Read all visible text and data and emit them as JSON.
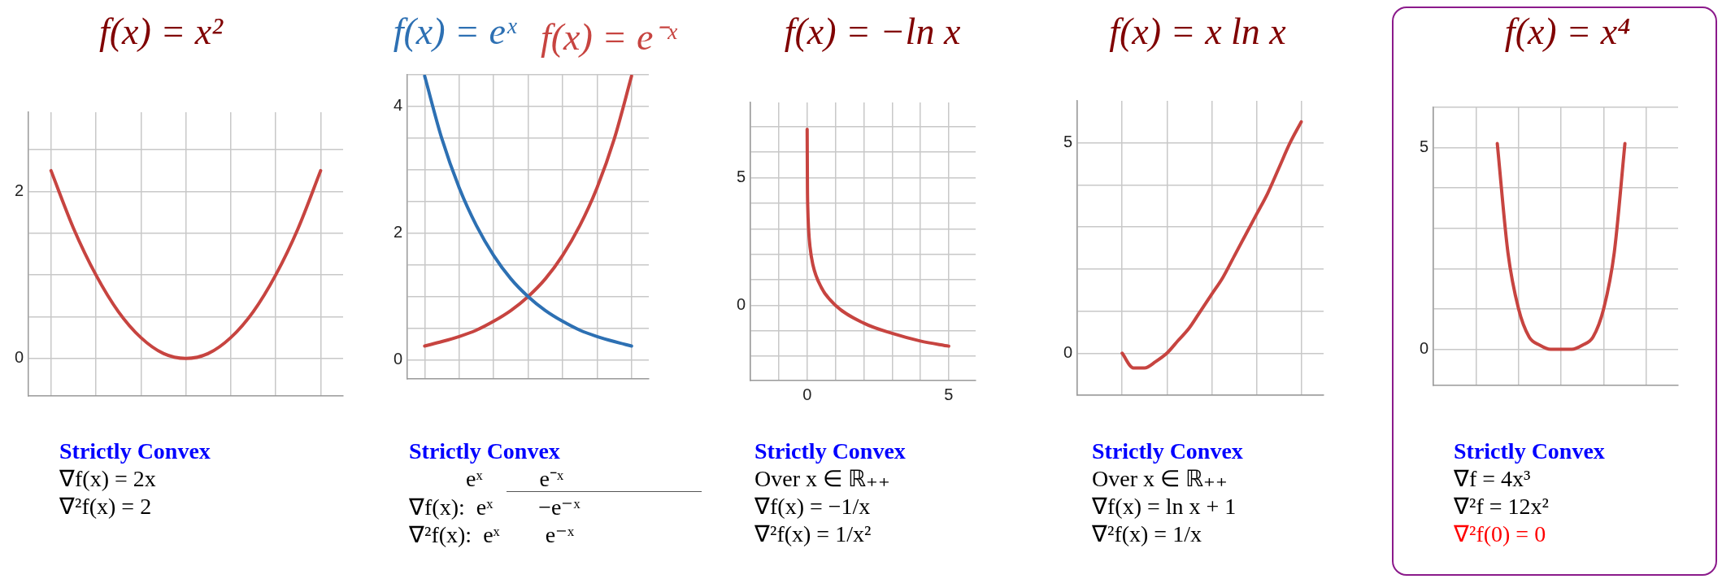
{
  "chart_data": [
    {
      "type": "line",
      "title": "f(x) = x²",
      "marker": "none",
      "grid": true,
      "tick_labels": "y",
      "ylim": [
        -0.45,
        2.95
      ],
      "categories": [
        null,
        null,
        null,
        null,
        null,
        null,
        null,
        null,
        null,
        null,
        null,
        null,
        null,
        null,
        null
      ],
      "yticks": [
        0,
        {
          "value": 0.5,
          "label": null
        },
        {
          "value": 1,
          "label": null
        },
        {
          "value": 1.5,
          "label": null
        },
        2,
        {
          "value": 2.5,
          "label": null
        }
      ],
      "series": [
        {
          "color": "#c74440",
          "values": [
            null,
            2.25,
            1.56,
            1,
            0.56,
            0.25,
            0.06,
            0,
            0.06,
            0.25,
            0.56,
            1,
            1.56,
            2.25,
            null
          ]
        }
      ],
      "annotations": [
        "Strictly Convex",
        "∇f(x) = 2x",
        "∇²f(x) = 2"
      ]
    },
    {
      "type": "line",
      "marker": "none",
      "grid": true,
      "tick_labels": "y",
      "ylim": [
        -0.3,
        4.5
      ],
      "categories": [
        null,
        null,
        null,
        null,
        null,
        null,
        null,
        null,
        null,
        null,
        null,
        null,
        null,
        null,
        null
      ],
      "yticks": [
        0,
        {
          "value": 0.5,
          "label": null
        },
        {
          "value": 1,
          "label": null
        },
        {
          "value": 1.5,
          "label": null
        },
        2,
        {
          "value": 2.5,
          "label": null
        },
        {
          "value": 3,
          "label": null
        },
        {
          "value": 3.5,
          "label": null
        },
        4,
        {
          "value": 4.5,
          "label": null
        }
      ],
      "series": [
        {
          "name": "f(x) = eˣ",
          "color": "#2d70b3",
          "values": [
            null,
            4.48,
            3.49,
            2.72,
            2.12,
            1.65,
            1.28,
            1,
            0.78,
            0.61,
            0.47,
            0.37,
            0.29,
            0.22,
            null
          ]
        },
        {
          "name": "f(x) = e⁻ˣ",
          "color": "#c74440",
          "values": [
            null,
            0.22,
            0.29,
            0.37,
            0.47,
            0.61,
            0.78,
            1,
            1.28,
            1.65,
            2.12,
            2.72,
            3.49,
            4.48,
            null
          ]
        }
      ],
      "annotations": [
        "Strictly Convex",
        "          eˣ          e⁻ˣ",
        "∇f(x):  eˣ        −e⁻ˣ",
        "∇²f(x):  eˣ        e⁻ˣ"
      ]
    },
    {
      "type": "line",
      "title": "f(x) = −ln x",
      "marker": "none",
      "grid": true,
      "xlim": [
        -2,
        5.95
      ],
      "ylim": [
        -2.95,
        7.95
      ],
      "xticks": [
        {
          "value": -2,
          "label": null
        },
        {
          "value": -1,
          "label": null
        },
        0,
        {
          "value": 1,
          "label": null
        },
        {
          "value": 2,
          "label": null
        },
        {
          "value": 3,
          "label": null
        },
        {
          "value": 4,
          "label": null
        },
        5
      ],
      "yticks": [
        {
          "value": -2,
          "label": null
        },
        {
          "value": -1,
          "label": null
        },
        0,
        {
          "value": 1,
          "label": null
        },
        {
          "value": 2,
          "label": null
        },
        {
          "value": 3,
          "label": null
        },
        {
          "value": 4,
          "label": null
        },
        5,
        {
          "value": 6,
          "label": null
        },
        {
          "value": 7,
          "label": null
        }
      ],
      "series": [
        {
          "color": "#c74440",
          "x": [
            0,
            0.01,
            0.02,
            0.05,
            0.1,
            0.2,
            0.5,
            1,
            2,
            3,
            4,
            5
          ],
          "values": [
            6.9,
            4.6,
            3.9,
            3,
            2.3,
            1.6,
            0.7,
            0,
            -0.7,
            -1.1,
            -1.4,
            -1.6
          ]
        }
      ],
      "annotations": [
        "Strictly Convex",
        "Over x ∈ ℝ₊₊",
        "∇f(x) = −1/x",
        "∇²f(x) = 1/x²"
      ]
    },
    {
      "type": "line",
      "title": "f(x) = x ln x",
      "marker": "none",
      "grid": true,
      "tick_labels": "y",
      "ylim": [
        -1,
        6
      ],
      "categories": [
        null,
        null,
        null,
        null,
        null,
        null,
        null,
        null,
        null,
        null,
        null,
        null,
        null,
        null,
        null,
        null,
        null,
        null,
        null,
        null,
        null,
        null,
        null
      ],
      "yticks": [
        {
          "value": -1,
          "label": null
        },
        0,
        {
          "value": 1,
          "label": null
        },
        {
          "value": 2,
          "label": null
        },
        {
          "value": 3,
          "label": null
        },
        {
          "value": 4,
          "label": null
        },
        5
      ],
      "series": [
        {
          "color": "#c74440",
          "values": [
            null,
            null,
            null,
            null,
            0,
            -0.35,
            -0.35,
            -0.2,
            0,
            0.3,
            0.6,
            1,
            1.4,
            1.8,
            2.3,
            2.8,
            3.3,
            3.8,
            4.4,
            5,
            5.5,
            null,
            null
          ]
        }
      ],
      "annotations": [
        "Strictly Convex",
        "Over x ∈ ℝ₊₊",
        "∇f(x) = ln x + 1",
        "∇²f(x) = 1/x"
      ]
    },
    {
      "type": "line",
      "title": "f(x) = x⁴",
      "marker": "none",
      "grid": true,
      "tick_labels": "y",
      "ylim": [
        -0.9,
        6
      ],
      "categories": [
        null,
        null,
        null,
        null,
        null,
        null,
        null,
        null,
        null,
        null,
        null,
        null,
        null,
        null,
        null,
        null,
        null,
        null,
        null,
        null,
        null,
        null,
        null,
        null
      ],
      "yticks": [
        0,
        {
          "value": 1,
          "label": null
        },
        {
          "value": 2,
          "label": null
        },
        {
          "value": 3,
          "label": null
        },
        {
          "value": 4,
          "label": null
        },
        5,
        {
          "value": 6,
          "label": null
        }
      ],
      "series": [
        {
          "color": "#c74440",
          "values": [
            null,
            null,
            null,
            null,
            null,
            null,
            5.1,
            2.4,
            1,
            0.3,
            0.1,
            0,
            0,
            0,
            0.1,
            0.3,
            1,
            2.4,
            5.1,
            null,
            null,
            null,
            null,
            null
          ]
        }
      ],
      "annotations": [
        "Strictly Convex",
        "∇f = 4x³",
        "∇²f = 12x²",
        "∇²f(0) = 0"
      ]
    }
  ]
}
